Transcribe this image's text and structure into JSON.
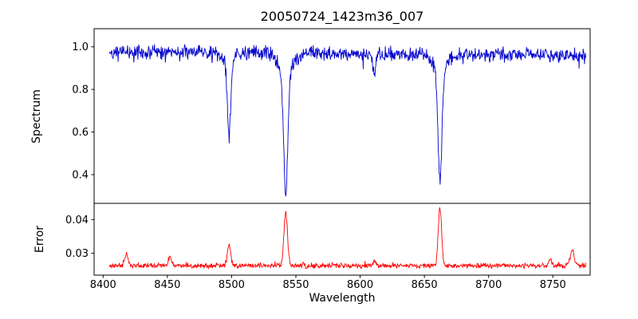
{
  "title": "20050724_1423m36_007",
  "chart_data": {
    "type": "line",
    "title": "20050724_1423m36_007",
    "xlabel": "Wavelength",
    "xlim": [
      8393,
      8779
    ],
    "x_start": 8405,
    "x_end": 8776,
    "sample_step": 0.35,
    "seed": 42,
    "x_ticks": [
      {
        "value": 8400,
        "label": "8400"
      },
      {
        "value": 8450,
        "label": "8450"
      },
      {
        "value": 8500,
        "label": "8500"
      },
      {
        "value": 8550,
        "label": "8550"
      },
      {
        "value": 8600,
        "label": "8600"
      },
      {
        "value": 8650,
        "label": "8650"
      },
      {
        "value": 8700,
        "label": "8700"
      },
      {
        "value": 8750,
        "label": "8750"
      }
    ],
    "panels": [
      {
        "name": "spectrum",
        "ylabel": "Spectrum",
        "line_color": "#0000cd",
        "ylim": [
          0.265,
          1.085
        ],
        "y_ticks": [
          {
            "value": 1.0,
            "label": "1.0"
          },
          {
            "value": 0.8,
            "label": "0.8"
          },
          {
            "value": 0.6,
            "label": "0.6"
          },
          {
            "value": 0.4,
            "label": "0.4"
          }
        ],
        "continuum_start": 0.976,
        "continuum_end": 0.96,
        "noise_amplitude": 0.04,
        "spike_probability": 0.05,
        "spike_depth": 0.045,
        "absorption_lines": [
          {
            "center": 8498.0,
            "depth": 0.38,
            "sigma": 1.3,
            "wing_depth": 0.05,
            "wing_sigma": 4.0
          },
          {
            "center": 8542.1,
            "depth": 0.655,
            "sigma": 1.6,
            "wing_depth": 0.1,
            "wing_sigma": 5.0
          },
          {
            "center": 8611.0,
            "depth": 0.09,
            "sigma": 0.9,
            "wing_depth": 0.0,
            "wing_sigma": 1.0
          },
          {
            "center": 8662.1,
            "depth": 0.585,
            "sigma": 1.5,
            "wing_depth": 0.08,
            "wing_sigma": 5.0
          }
        ]
      },
      {
        "name": "error",
        "ylabel": "Error",
        "line_color": "#ff0000",
        "ylim": [
          0.0235,
          0.0448
        ],
        "y_ticks": [
          {
            "value": 0.04,
            "label": "0.04"
          },
          {
            "value": 0.03,
            "label": "0.03"
          }
        ],
        "baseline": 0.0263,
        "noise_amplitude": 0.0009,
        "spike_probability": 0.04,
        "spike_height": 0.0012,
        "peaks": [
          {
            "center": 8418.0,
            "amplitude": 0.0035,
            "sigma": 1.2
          },
          {
            "center": 8452.0,
            "amplitude": 0.0028,
            "sigma": 1.2
          },
          {
            "center": 8498.0,
            "amplitude": 0.0062,
            "sigma": 1.3
          },
          {
            "center": 8542.1,
            "amplitude": 0.0158,
            "sigma": 1.4
          },
          {
            "center": 8611.0,
            "amplitude": 0.0012,
            "sigma": 1.2
          },
          {
            "center": 8662.1,
            "amplitude": 0.0172,
            "sigma": 1.3
          },
          {
            "center": 8748.0,
            "amplitude": 0.002,
            "sigma": 1.2
          },
          {
            "center": 8765.0,
            "amplitude": 0.0045,
            "sigma": 1.5
          }
        ]
      }
    ]
  }
}
